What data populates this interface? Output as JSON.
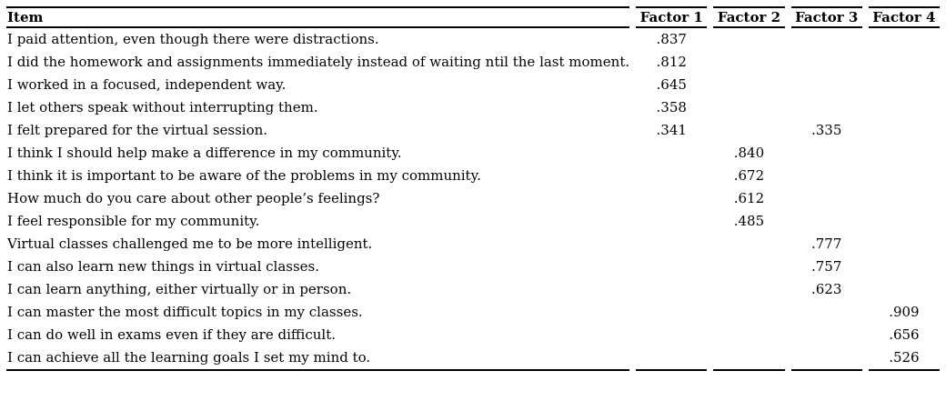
{
  "table": {
    "headers": [
      "Item",
      "Factor 1",
      "Factor 2",
      "Factor 3",
      "Factor 4"
    ],
    "rows": [
      {
        "item": "I paid attention, even though there were distractions.",
        "f1": ".837",
        "f2": "",
        "f3": "",
        "f4": ""
      },
      {
        "item": "I did the homework and assignments immediately instead of waiting ntil the last moment.",
        "f1": ".812",
        "f2": "",
        "f3": "",
        "f4": ""
      },
      {
        "item": "I worked in a focused, independent way.",
        "f1": ".645",
        "f2": "",
        "f3": "",
        "f4": ""
      },
      {
        "item": "I let others speak without interrupting them.",
        "f1": ".358",
        "f2": "",
        "f3": "",
        "f4": ""
      },
      {
        "item": "I felt prepared for the virtual session.",
        "f1": ".341",
        "f2": "",
        "f3": ".335",
        "f4": ""
      },
      {
        "item": "I think I should help make a difference in my community.",
        "f1": "",
        "f2": ".840",
        "f3": "",
        "f4": ""
      },
      {
        "item": "I think it is important to be aware of the problems in my community.",
        "f1": "",
        "f2": ".672",
        "f3": "",
        "f4": ""
      },
      {
        "item": "How much do you care about other people’s feelings?",
        "f1": "",
        "f2": ".612",
        "f3": "",
        "f4": ""
      },
      {
        "item": "I feel responsible for my community.",
        "f1": "",
        "f2": ".485",
        "f3": "",
        "f4": ""
      },
      {
        "item": "Virtual classes challenged me to be more intelligent.",
        "f1": "",
        "f2": "",
        "f3": ".777",
        "f4": ""
      },
      {
        "item": "I can also learn new things in virtual classes.",
        "f1": "",
        "f2": "",
        "f3": ".757",
        "f4": ""
      },
      {
        "item": "I can learn anything, either virtually or in person.",
        "f1": "",
        "f2": "",
        "f3": ".623",
        "f4": ""
      },
      {
        "item": "I can master the most difficult topics in my classes.",
        "f1": "",
        "f2": "",
        "f3": "",
        "f4": ".909"
      },
      {
        "item": "I can do well in exams even if they are difficult.",
        "f1": "",
        "f2": "",
        "f3": "",
        "f4": ".656"
      },
      {
        "item": "I can achieve all the learning goals I set my mind to.",
        "f1": "",
        "f2": "",
        "f3": "",
        "f4": ".526"
      }
    ]
  }
}
